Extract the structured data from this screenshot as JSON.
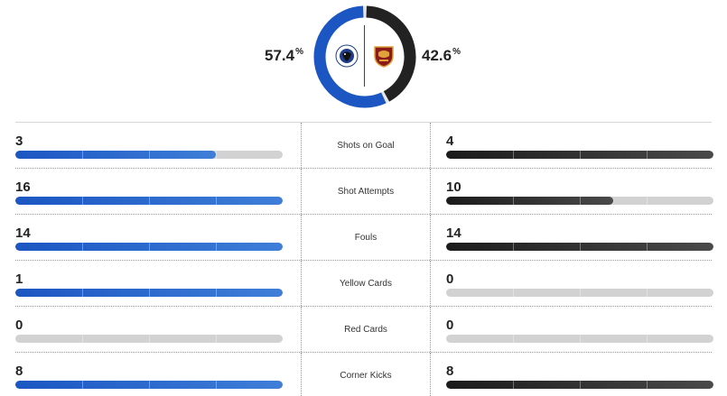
{
  "possession": {
    "home": {
      "value": "57.4",
      "unit": "%",
      "fraction": 0.574
    },
    "away": {
      "value": "42.6",
      "unit": "%",
      "fraction": 0.426
    },
    "colors": {
      "home": "#1b56c2",
      "away": "#222222"
    },
    "home_logo_icon": "atalanta-crest-icon",
    "away_logo_icon": "roma-crest-icon"
  },
  "stats": [
    {
      "label": "Shots on Goal",
      "home": "3",
      "away": "4",
      "home_fraction": 0.75,
      "away_fraction": 1.0
    },
    {
      "label": "Shot Attempts",
      "home": "16",
      "away": "10",
      "home_fraction": 1.0,
      "away_fraction": 0.625
    },
    {
      "label": "Fouls",
      "home": "14",
      "away": "14",
      "home_fraction": 1.0,
      "away_fraction": 1.0
    },
    {
      "label": "Yellow Cards",
      "home": "1",
      "away": "0",
      "home_fraction": 1.0,
      "away_fraction": 0.0
    },
    {
      "label": "Red Cards",
      "home": "0",
      "away": "0",
      "home_fraction": 0.0,
      "away_fraction": 0.0
    },
    {
      "label": "Corner Kicks",
      "home": "8",
      "away": "8",
      "home_fraction": 1.0,
      "away_fraction": 1.0
    }
  ]
}
